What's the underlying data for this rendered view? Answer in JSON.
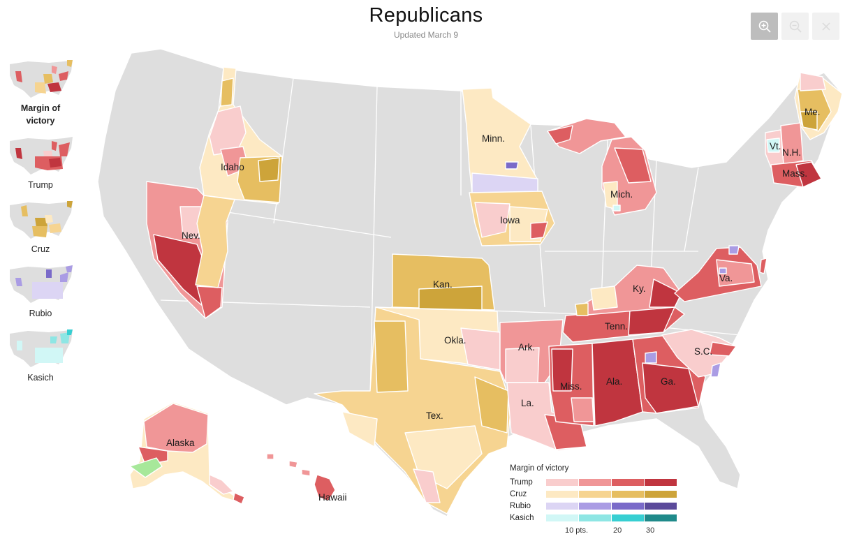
{
  "header": {
    "title": "Republicans",
    "subtitle": "Updated March 9"
  },
  "controls": {
    "zoom_in_icon": "zoom-in-icon",
    "zoom_out_icon": "zoom-out-icon",
    "close_icon": "close-icon"
  },
  "sidebar": {
    "items": [
      {
        "label": "Margin of victory",
        "selected": true
      },
      {
        "label": "Trump",
        "selected": false
      },
      {
        "label": "Cruz",
        "selected": false
      },
      {
        "label": "Rubio",
        "selected": false
      },
      {
        "label": "Kasich",
        "selected": false
      }
    ]
  },
  "map": {
    "state_labels": [
      "Idaho",
      "Nev.",
      "Minn.",
      "Iowa",
      "Kan.",
      "Okla.",
      "Tex.",
      "Ark.",
      "La.",
      "Miss.",
      "Ala.",
      "Ga.",
      "Tenn.",
      "Ky.",
      "Va.",
      "S.C.",
      "Mich.",
      "Me.",
      "N.H.",
      "Vt.",
      "Mass.",
      "Alaska",
      "Hawaii"
    ]
  },
  "legend": {
    "title": "Margin of victory",
    "rows": [
      {
        "name": "Trump",
        "colors": [
          "#f9cdcd",
          "#f09697",
          "#dd5e61",
          "#c0353f"
        ]
      },
      {
        "name": "Cruz",
        "colors": [
          "#fde9c3",
          "#f6d491",
          "#e6be61",
          "#cda43a"
        ]
      },
      {
        "name": "Rubio",
        "colors": [
          "#dcd5f4",
          "#aa9ce4",
          "#7a6ac9",
          "#5b4a9a"
        ]
      },
      {
        "name": "Kasich",
        "colors": [
          "#d1f7f6",
          "#8ee6e4",
          "#37cfd2",
          "#1f8a8a"
        ]
      }
    ],
    "ticks": [
      "10 pts.",
      "20",
      "30"
    ]
  },
  "colors": {
    "no_data": "#dedede",
    "state_border": "#ffffff"
  }
}
